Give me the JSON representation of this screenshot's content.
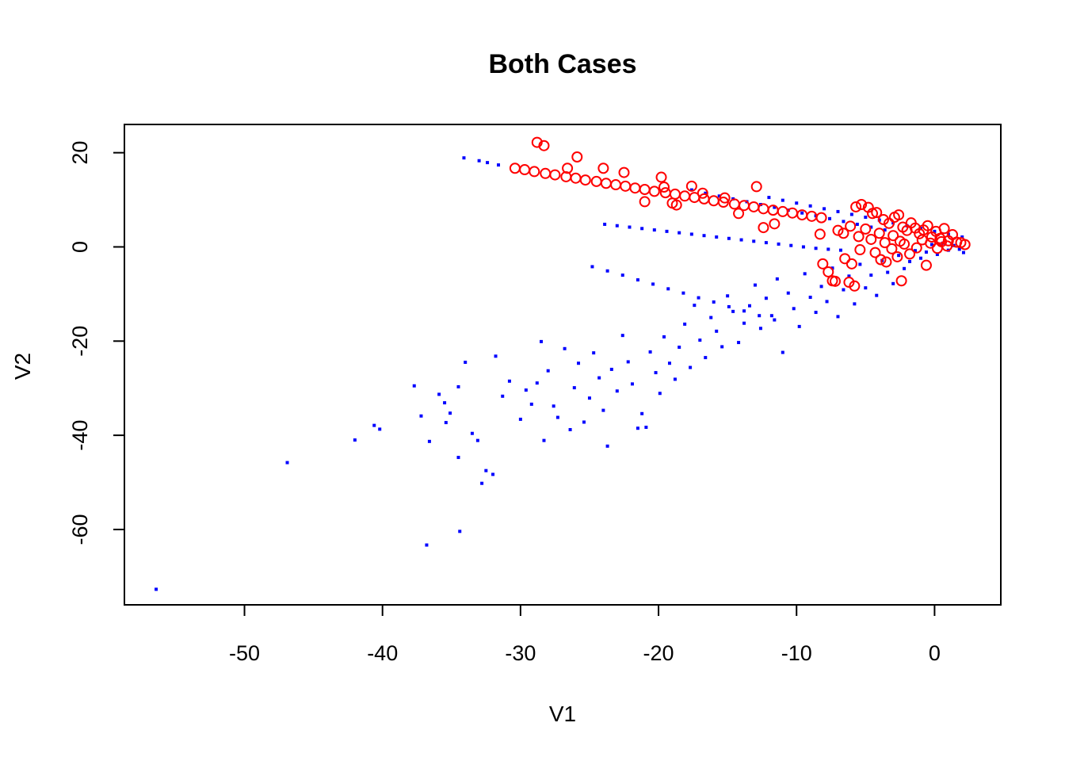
{
  "chart_data": {
    "type": "scatter",
    "title": "Both Cases",
    "xlabel": "V1",
    "ylabel": "V2",
    "xlim": [
      -58.7,
      4.8
    ],
    "ylim": [
      -76.0,
      26.0
    ],
    "xticks": [
      -50,
      -40,
      -30,
      -20,
      -10,
      0
    ],
    "yticks": [
      -60,
      -40,
      -20,
      0,
      20
    ],
    "colors": {
      "series1": "#0000ff",
      "series2": "#ff0000",
      "axis": "#000000"
    },
    "series": [
      {
        "marker": "filled-square",
        "color": "#0000ff",
        "points": [
          [
            -56.4,
            -72.7
          ],
          [
            -46.9,
            -45.8
          ],
          [
            -42.0,
            -41.0
          ],
          [
            -40.2,
            -38.7
          ],
          [
            -40.6,
            -37.9
          ],
          [
            -37.7,
            -29.5
          ],
          [
            -37.2,
            -35.9
          ],
          [
            -36.8,
            -63.3
          ],
          [
            -36.6,
            -41.3
          ],
          [
            -35.9,
            -31.3
          ],
          [
            -35.5,
            -33.1
          ],
          [
            -35.1,
            -35.3
          ],
          [
            -35.4,
            -37.3
          ],
          [
            -34.5,
            -29.7
          ],
          [
            -34.5,
            -44.7
          ],
          [
            -34.4,
            -60.4
          ],
          [
            -34.0,
            -24.5
          ],
          [
            -33.5,
            -39.6
          ],
          [
            -33.1,
            -41.1
          ],
          [
            -32.8,
            -50.2
          ],
          [
            -32.5,
            -47.5
          ],
          [
            -32.0,
            -48.3
          ],
          [
            -31.8,
            -23.2
          ],
          [
            -31.3,
            -31.7
          ],
          [
            -30.8,
            -28.5
          ],
          [
            -30.0,
            -36.6
          ],
          [
            -29.6,
            -30.4
          ],
          [
            -29.2,
            -33.4
          ],
          [
            -28.8,
            -28.9
          ],
          [
            -28.5,
            -20.1
          ],
          [
            -28.3,
            -41.1
          ],
          [
            -28.0,
            -26.3
          ],
          [
            -27.6,
            -33.8
          ],
          [
            -27.3,
            -36.2
          ],
          [
            -26.8,
            -21.6
          ],
          [
            -26.4,
            -38.8
          ],
          [
            -26.1,
            -29.9
          ],
          [
            -25.8,
            -24.7
          ],
          [
            -25.4,
            -37.2
          ],
          [
            -25.0,
            -32.1
          ],
          [
            -24.7,
            -22.5
          ],
          [
            -24.3,
            -27.8
          ],
          [
            -24.0,
            -34.7
          ],
          [
            -23.7,
            -42.3
          ],
          [
            -23.4,
            -26.0
          ],
          [
            -23.0,
            -30.6
          ],
          [
            -22.6,
            -18.8
          ],
          [
            -22.2,
            -24.4
          ],
          [
            -21.9,
            -29.1
          ],
          [
            -21.5,
            -38.5
          ],
          [
            -21.2,
            -35.4
          ],
          [
            -20.9,
            -38.3
          ],
          [
            -20.6,
            -22.3
          ],
          [
            -20.2,
            -26.7
          ],
          [
            -19.9,
            -31.1
          ],
          [
            -19.6,
            -19.1
          ],
          [
            -19.2,
            -24.7
          ],
          [
            -18.8,
            -28.1
          ],
          [
            -18.5,
            -21.3
          ],
          [
            -18.1,
            -16.4
          ],
          [
            -17.7,
            -25.6
          ],
          [
            -17.4,
            -12.4
          ],
          [
            -17.0,
            -19.8
          ],
          [
            -16.6,
            -23.5
          ],
          [
            -16.2,
            -15.0
          ],
          [
            -15.8,
            -17.9
          ],
          [
            -15.4,
            -21.2
          ],
          [
            -15.0,
            -10.4
          ],
          [
            -14.6,
            -13.7
          ],
          [
            -14.2,
            -20.3
          ],
          [
            -13.8,
            -16.2
          ],
          [
            -13.4,
            -12.5
          ],
          [
            -13.0,
            -8.1
          ],
          [
            -12.6,
            -17.3
          ],
          [
            -12.2,
            -10.9
          ],
          [
            -11.8,
            -14.6
          ],
          [
            -11.4,
            -6.8
          ],
          [
            -11.0,
            -22.4
          ],
          [
            -10.6,
            -9.8
          ],
          [
            -10.2,
            -13.1
          ],
          [
            -9.8,
            -16.9
          ],
          [
            -9.4,
            -5.7
          ],
          [
            -9.0,
            -10.7
          ],
          [
            -8.6,
            -13.9
          ],
          [
            -8.2,
            -8.4
          ],
          [
            -7.8,
            -11.6
          ],
          [
            -7.4,
            -4.5
          ],
          [
            -7.0,
            -14.8
          ],
          [
            -6.6,
            -9.1
          ],
          [
            -6.2,
            -6.2
          ],
          [
            -5.8,
            -12.1
          ],
          [
            -5.4,
            -3.7
          ],
          [
            -5.0,
            -8.7
          ],
          [
            -4.6,
            -6.0
          ],
          [
            -4.2,
            -10.3
          ],
          [
            -3.8,
            -2.9
          ],
          [
            -3.4,
            -5.4
          ],
          [
            -3.0,
            -7.8
          ],
          [
            -2.6,
            -1.8
          ],
          [
            -2.2,
            -4.6
          ],
          [
            -1.8,
            -3.1
          ],
          [
            -1.4,
            -0.8
          ],
          [
            -1.0,
            -2.4
          ],
          [
            -0.6,
            -1.1
          ],
          [
            -0.2,
            0.5
          ],
          [
            0.2,
            -1.6
          ],
          [
            0.6,
            0.8
          ],
          [
            1.0,
            -0.7
          ],
          [
            1.4,
            0.3
          ],
          [
            1.8,
            -0.5
          ],
          [
            2.1,
            -1.2
          ],
          [
            -34.1,
            18.9
          ],
          [
            -33.0,
            18.3
          ],
          [
            -32.4,
            17.9
          ],
          [
            -31.6,
            17.4
          ],
          [
            -23.9,
            4.8
          ],
          [
            -23.0,
            4.5
          ],
          [
            -22.1,
            4.2
          ],
          [
            -21.2,
            3.9
          ],
          [
            -20.3,
            3.6
          ],
          [
            -19.4,
            3.3
          ],
          [
            -18.5,
            3.0
          ],
          [
            -17.6,
            2.7
          ],
          [
            -16.7,
            2.4
          ],
          [
            -15.8,
            2.1
          ],
          [
            -14.9,
            1.8
          ],
          [
            -14.0,
            1.5
          ],
          [
            -13.1,
            1.2
          ],
          [
            -12.2,
            0.9
          ],
          [
            -11.3,
            0.6
          ],
          [
            -10.4,
            0.3
          ],
          [
            -9.5,
            0.0
          ],
          [
            -8.6,
            -0.3
          ],
          [
            -7.7,
            -0.5
          ],
          [
            -6.8,
            -0.7
          ],
          [
            -24.8,
            -4.2
          ],
          [
            -23.7,
            -5.1
          ],
          [
            -22.6,
            -6.0
          ],
          [
            -21.5,
            -7.0
          ],
          [
            -20.4,
            -7.9
          ],
          [
            -19.3,
            -8.9
          ],
          [
            -18.2,
            -9.8
          ],
          [
            -17.1,
            -10.8
          ],
          [
            -16.0,
            -11.7
          ],
          [
            -14.9,
            -12.7
          ],
          [
            -13.8,
            -13.6
          ],
          [
            -12.7,
            -14.6
          ],
          [
            -11.6,
            -15.5
          ],
          [
            -17.6,
            12.1
          ],
          [
            -16.6,
            11.4
          ],
          [
            -15.6,
            10.8
          ],
          [
            -14.6,
            10.2
          ],
          [
            -13.6,
            9.6
          ],
          [
            -12.6,
            9.0
          ],
          [
            -11.6,
            8.4
          ],
          [
            -10.6,
            7.8
          ],
          [
            -9.6,
            7.2
          ],
          [
            -8.6,
            6.6
          ],
          [
            -7.6,
            6.0
          ],
          [
            -6.6,
            5.4
          ],
          [
            -5.6,
            4.8
          ],
          [
            -4.6,
            4.2
          ],
          [
            -3.6,
            3.6
          ],
          [
            -12.0,
            10.5
          ],
          [
            -11.0,
            9.9
          ],
          [
            -10.0,
            9.3
          ],
          [
            -9.0,
            8.7
          ],
          [
            -8.0,
            8.1
          ],
          [
            -7.0,
            7.5
          ],
          [
            -6.0,
            6.9
          ],
          [
            -5.0,
            6.3
          ],
          [
            -4.0,
            5.7
          ],
          [
            -3.0,
            5.1
          ],
          [
            -2.0,
            4.5
          ],
          [
            -1.0,
            3.9
          ],
          [
            0.0,
            3.3
          ],
          [
            1.0,
            2.7
          ],
          [
            2.0,
            2.1
          ]
        ]
      },
      {
        "marker": "open-circle",
        "color": "#ff0000",
        "points": [
          [
            -28.8,
            22.2
          ],
          [
            -28.3,
            21.5
          ],
          [
            -25.9,
            19.1
          ],
          [
            -30.4,
            16.7
          ],
          [
            -29.7,
            16.4
          ],
          [
            -29.0,
            16.0
          ],
          [
            -28.2,
            15.6
          ],
          [
            -27.5,
            15.3
          ],
          [
            -26.7,
            14.9
          ],
          [
            -26.0,
            14.6
          ],
          [
            -25.3,
            14.2
          ],
          [
            -24.5,
            13.9
          ],
          [
            -23.8,
            13.5
          ],
          [
            -23.1,
            13.2
          ],
          [
            -22.4,
            12.9
          ],
          [
            -21.7,
            12.5
          ],
          [
            -21.0,
            12.2
          ],
          [
            -20.3,
            11.8
          ],
          [
            -19.5,
            11.5
          ],
          [
            -18.8,
            11.2
          ],
          [
            -18.1,
            10.8
          ],
          [
            -17.4,
            10.5
          ],
          [
            -16.7,
            10.2
          ],
          [
            -16.0,
            9.8
          ],
          [
            -15.3,
            9.5
          ],
          [
            -14.5,
            9.1
          ],
          [
            -13.8,
            8.8
          ],
          [
            -13.1,
            8.5
          ],
          [
            -12.4,
            8.1
          ],
          [
            -11.7,
            7.8
          ],
          [
            -11.0,
            7.5
          ],
          [
            -10.3,
            7.2
          ],
          [
            -9.6,
            6.8
          ],
          [
            -8.9,
            6.5
          ],
          [
            -8.2,
            6.2
          ],
          [
            -26.6,
            16.7
          ],
          [
            -24.0,
            16.7
          ],
          [
            -22.5,
            15.8
          ],
          [
            -19.8,
            14.8
          ],
          [
            -19.6,
            12.7
          ],
          [
            -19.0,
            9.3
          ],
          [
            -18.7,
            8.9
          ],
          [
            -17.6,
            12.9
          ],
          [
            -15.2,
            10.4
          ],
          [
            -12.9,
            12.8
          ],
          [
            -12.4,
            4.1
          ],
          [
            -11.6,
            4.9
          ],
          [
            -21.0,
            9.6
          ],
          [
            -16.8,
            11.4
          ],
          [
            -14.2,
            7.1
          ],
          [
            -8.3,
            2.7
          ],
          [
            -8.1,
            -3.6
          ],
          [
            -7.7,
            -5.3
          ],
          [
            -7.4,
            -7.2
          ],
          [
            -7.2,
            -7.3
          ],
          [
            -6.2,
            -7.5
          ],
          [
            -6.0,
            -3.6
          ],
          [
            -6.5,
            -2.5
          ],
          [
            -5.8,
            -8.3
          ],
          [
            -5.4,
            -0.6
          ],
          [
            -5.7,
            8.5
          ],
          [
            -5.3,
            9.0
          ],
          [
            -4.8,
            8.4
          ],
          [
            -4.5,
            7.1
          ],
          [
            -4.2,
            7.3
          ],
          [
            -3.7,
            5.8
          ],
          [
            -3.3,
            5.0
          ],
          [
            -2.9,
            6.3
          ],
          [
            -2.6,
            6.8
          ],
          [
            -2.3,
            4.2
          ],
          [
            -2.0,
            3.5
          ],
          [
            -1.7,
            5.1
          ],
          [
            -1.4,
            4.0
          ],
          [
            -1.1,
            2.8
          ],
          [
            -0.8,
            3.6
          ],
          [
            -0.5,
            4.5
          ],
          [
            -0.2,
            2.1
          ],
          [
            0.1,
            3.3
          ],
          [
            0.4,
            1.8
          ],
          [
            0.7,
            3.9
          ],
          [
            1.0,
            1.3
          ],
          [
            1.3,
            2.6
          ],
          [
            1.6,
            1.0
          ],
          [
            1.9,
            0.9
          ],
          [
            2.2,
            0.5
          ],
          [
            -4.3,
            -1.2
          ],
          [
            -3.9,
            -2.7
          ],
          [
            -3.5,
            -3.2
          ],
          [
            -3.1,
            -0.4
          ],
          [
            -2.7,
            -2.1
          ],
          [
            -2.4,
            -7.2
          ],
          [
            -2.2,
            0.6
          ],
          [
            -1.8,
            -1.5
          ],
          [
            -1.3,
            -0.2
          ],
          [
            -0.9,
            1.5
          ],
          [
            -0.6,
            -3.9
          ],
          [
            -0.3,
            0.8
          ],
          [
            0.2,
            -0.3
          ],
          [
            0.5,
            1.1
          ],
          [
            0.9,
            0.2
          ],
          [
            -7.0,
            3.5
          ],
          [
            -6.6,
            2.9
          ],
          [
            -6.1,
            4.4
          ],
          [
            -5.5,
            2.2
          ],
          [
            -5.0,
            3.8
          ],
          [
            -4.6,
            1.6
          ],
          [
            -4.0,
            2.9
          ],
          [
            -3.6,
            0.9
          ],
          [
            -3.0,
            2.4
          ],
          [
            -2.5,
            1.2
          ]
        ]
      }
    ]
  }
}
